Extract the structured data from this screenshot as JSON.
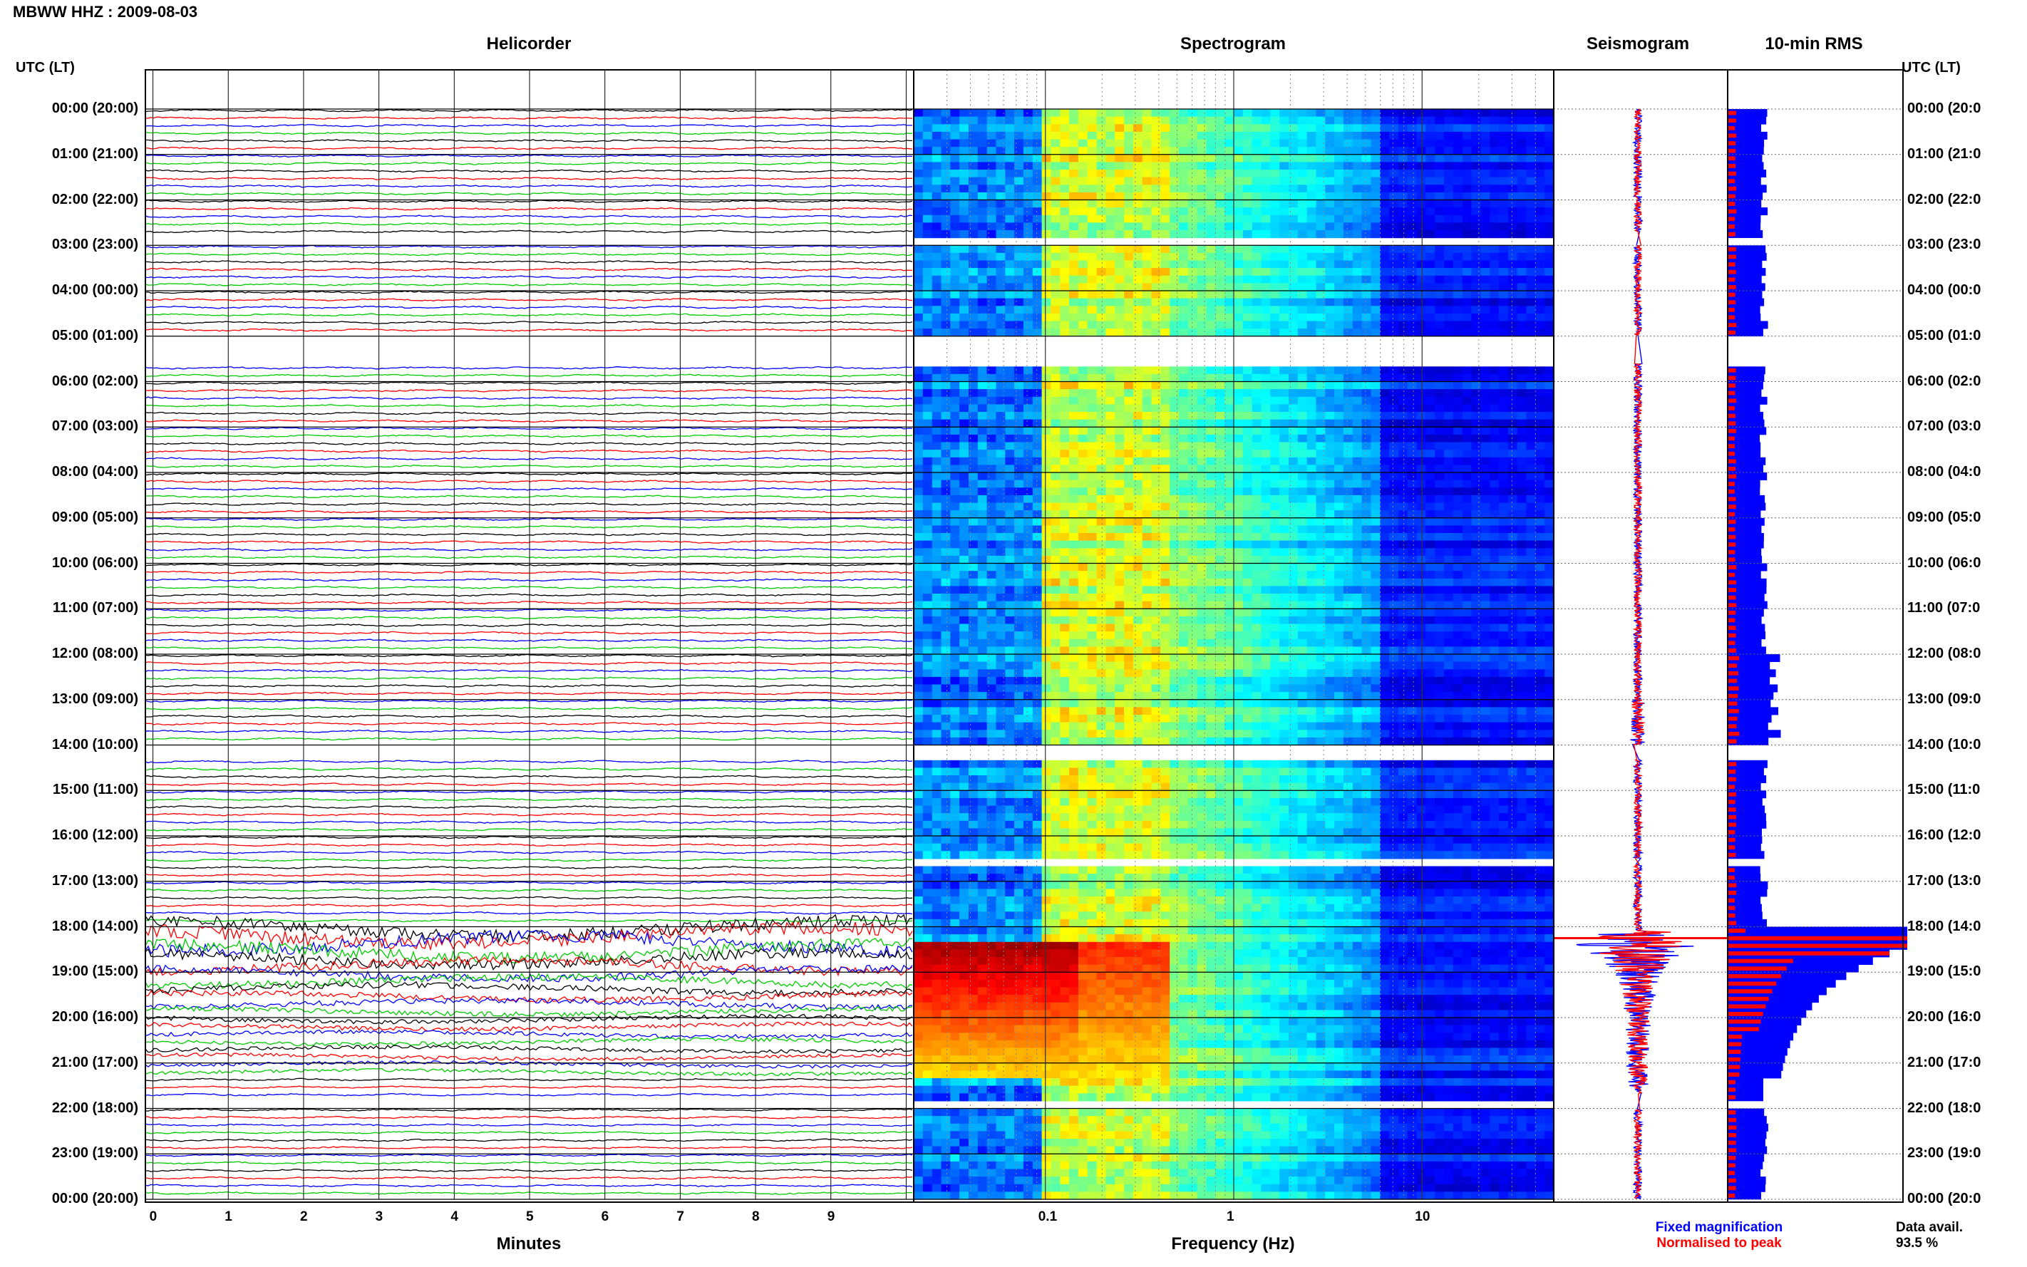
{
  "header": {
    "title": "MBWW HHZ : 2009-08-03"
  },
  "panels": {
    "helicorder": "Helicorder",
    "spectrogram": "Spectrogram",
    "seismogram": "Seismogram",
    "rms": "10-min RMS"
  },
  "utc_header_left": "UTC (LT)",
  "utc_header_right": "UTC (LT)",
  "time_labels": [
    "00:00 (20:00)",
    "01:00 (21:00)",
    "02:00 (22:00)",
    "03:00 (23:00)",
    "04:00 (00:00)",
    "05:00 (01:00)",
    "06:00 (02:00)",
    "07:00 (03:00)",
    "08:00 (04:00)",
    "09:00 (05:00)",
    "10:00 (06:00)",
    "11:00 (07:00)",
    "12:00 (08:00)",
    "13:00 (09:00)",
    "14:00 (10:00)",
    "15:00 (11:00)",
    "16:00 (12:00)",
    "17:00 (13:00)",
    "18:00 (14:00)",
    "19:00 (15:00)",
    "20:00 (16:00)",
    "21:00 (17:00)",
    "22:00 (18:00)",
    "23:00 (19:00)",
    "00:00 (20:00)"
  ],
  "time_labels_right": [
    "00:00 (20:0",
    "01:00 (21:0",
    "02:00 (22:0",
    "03:00 (23:0",
    "04:00 (00:0",
    "05:00 (01:0",
    "06:00 (02:0",
    "07:00 (03:0",
    "08:00 (04:0",
    "09:00 (05:0",
    "10:00 (06:0",
    "11:00 (07:0",
    "12:00 (08:0",
    "13:00 (09:0",
    "14:00 (10:0",
    "15:00 (11:0",
    "16:00 (12:0",
    "17:00 (13:0",
    "18:00 (14:0",
    "19:00 (15:0",
    "20:00 (16:0",
    "21:00 (17:0",
    "22:00 (18:0",
    "23:00 (19:0",
    "00:00 (20:0"
  ],
  "chart_data": [
    {
      "type": "line",
      "panel": "Helicorder",
      "xlabel": "Minutes",
      "x_ticks": [
        "0",
        "1",
        "2",
        "3",
        "4",
        "5",
        "6",
        "7",
        "8",
        "9"
      ],
      "xlim": [
        0,
        10
      ],
      "rows_per_hour": 6,
      "row_colors": [
        "#000000",
        "#ff0000",
        "#0000ff",
        "#00cc00"
      ],
      "gaps_hours": [
        [
          2.7,
          3.0
        ],
        [
          5.0,
          5.6
        ],
        [
          14.0,
          14.3
        ],
        [
          21.7,
          22.0
        ]
      ],
      "event": {
        "start_hour": 18.0,
        "end_hour": 21.3,
        "peak_hour": 18.4
      }
    },
    {
      "type": "heatmap",
      "panel": "Spectrogram",
      "xlabel": "Frequency (Hz)",
      "x_ticks": [
        "0.1",
        "1",
        "10"
      ],
      "xscale": "log",
      "xlim": [
        0.02,
        50
      ],
      "gaps_hours": [
        [
          2.7,
          3.0
        ],
        [
          5.0,
          5.6
        ],
        [
          14.0,
          14.3
        ],
        [
          16.5,
          16.6
        ],
        [
          21.7,
          22.0
        ]
      ],
      "event": {
        "start_hour": 18.2,
        "end_hour": 21.3,
        "low_freq_max_hz": 0.3
      }
    },
    {
      "type": "line",
      "panel": "Seismogram",
      "series": [
        {
          "name": "Fixed magnification",
          "color": "#0000ff"
        },
        {
          "name": "Normalised to peak",
          "color": "#ff0000"
        }
      ],
      "peak_hour": 18.4
    },
    {
      "type": "bar",
      "panel": "10-min RMS",
      "series": [
        {
          "name": "Fixed magnification",
          "color": "#0000ff"
        },
        {
          "name": "Normalised to peak",
          "color": "#ff0000"
        }
      ],
      "bin_minutes": 10,
      "event_peak_hour": 18.3
    }
  ],
  "legend": {
    "fixed": "Fixed magnification",
    "normalised": "Normalised to peak"
  },
  "data_avail": {
    "label": "Data avail.",
    "value": "93.5 %"
  }
}
